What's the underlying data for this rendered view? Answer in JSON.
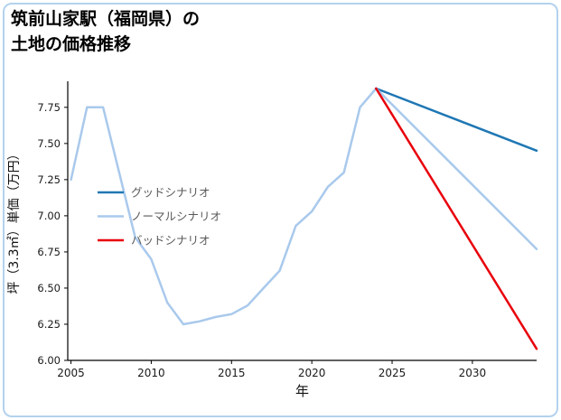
{
  "frame": {
    "border_color": "#b3d2ee",
    "background": "#ffffff"
  },
  "title": {
    "line1": "筑前山家駅（福岡県）の",
    "line2": "土地の価格推移"
  },
  "chart_data": {
    "type": "line",
    "title": "筑前山家駅（福岡県）の 土地の価格推移",
    "xlabel": "年",
    "ylabel": "坪（3.3㎡）単価（万円）",
    "xlim": [
      2004.8,
      2034
    ],
    "ylim": [
      6.0,
      7.93
    ],
    "xticks": [
      2005,
      2010,
      2015,
      2020,
      2025,
      2030
    ],
    "yticks": [
      6.0,
      6.25,
      6.5,
      6.75,
      7.0,
      7.25,
      7.5,
      7.75
    ],
    "grid": false,
    "axis_color": "#000000",
    "tick_label_color": "#1a1a1a",
    "axis_label_color": "#111111",
    "legend": {
      "position": "inside-left",
      "text_color": "#595959"
    },
    "series": [
      {
        "id": "history",
        "label": null,
        "color": "#a9c9ec",
        "x": [
          2005,
          2006,
          2007,
          2008,
          2009,
          2010,
          2011,
          2012,
          2013,
          2014,
          2015,
          2016,
          2017,
          2018,
          2019,
          2020,
          2021,
          2022,
          2023,
          2024
        ],
        "values": [
          7.25,
          7.75,
          7.75,
          7.3,
          6.85,
          6.7,
          6.4,
          6.25,
          6.27,
          6.3,
          6.32,
          6.38,
          6.5,
          6.62,
          6.93,
          7.03,
          7.2,
          7.3,
          7.75,
          7.88
        ]
      },
      {
        "id": "good",
        "label": "グッドシナリオ",
        "color": "#1f77b4",
        "x": [
          2024,
          2034
        ],
        "values": [
          7.88,
          7.45
        ]
      },
      {
        "id": "normal",
        "label": "ノーマルシナリオ",
        "color": "#a9c9ec",
        "x": [
          2024,
          2034
        ],
        "values": [
          7.88,
          6.77
        ]
      },
      {
        "id": "bad",
        "label": "バッドシナリオ",
        "color": "#e8000b",
        "x": [
          2024,
          2034
        ],
        "values": [
          7.88,
          6.08
        ]
      }
    ]
  }
}
